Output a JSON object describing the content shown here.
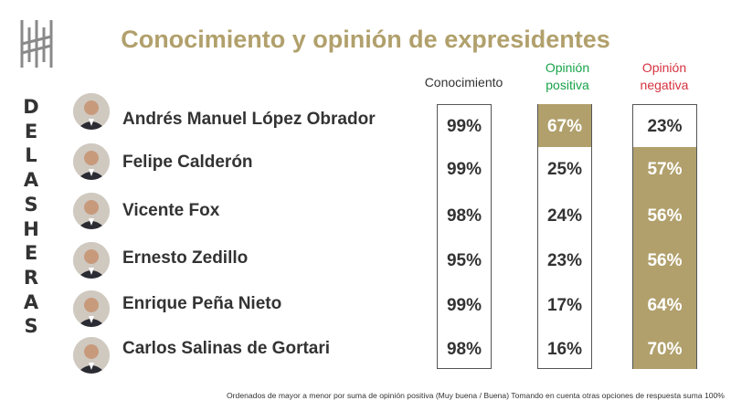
{
  "title": "Conocimiento y opinión de expresidentes",
  "side_letters": [
    "D",
    "E",
    "L",
    "A",
    "S",
    "H",
    "E",
    "R",
    "A",
    "S"
  ],
  "headers": {
    "conocimiento": "Conocimiento",
    "opinion_positiva": [
      "Opinión",
      "positiva"
    ],
    "opinion_negativa": [
      "Opinión",
      "negativa"
    ]
  },
  "colors": {
    "accent": "#b1a06c",
    "positive": "#19a34a",
    "negative": "#d6333f"
  },
  "rows": [
    {
      "name": "Andrés Manuel López Obrador",
      "conocimiento": "99%",
      "positiva": "67%",
      "negativa": "23%",
      "highlight": "positiva"
    },
    {
      "name": "Felipe Calderón",
      "conocimiento": "99%",
      "positiva": "25%",
      "negativa": "57%",
      "highlight": "negativa"
    },
    {
      "name": "Vicente Fox",
      "conocimiento": "98%",
      "positiva": "24%",
      "negativa": "56%",
      "highlight": "negativa"
    },
    {
      "name": "Ernesto Zedillo",
      "conocimiento": "95%",
      "positiva": "23%",
      "negativa": "56%",
      "highlight": "negativa"
    },
    {
      "name": "Enrique Peña Nieto",
      "conocimiento": "99%",
      "positiva": "17%",
      "negativa": "64%",
      "highlight": "negativa"
    },
    {
      "name": "Carlos Salinas de Gortari",
      "conocimiento": "98%",
      "positiva": "16%",
      "negativa": "70%",
      "highlight": "negativa"
    }
  ],
  "footnote": "Ordenados de mayor a menor por suma de opinión positiva (Muy buena / Buena) Tomando en cuenta otras opciones de respuesta suma 100%"
}
